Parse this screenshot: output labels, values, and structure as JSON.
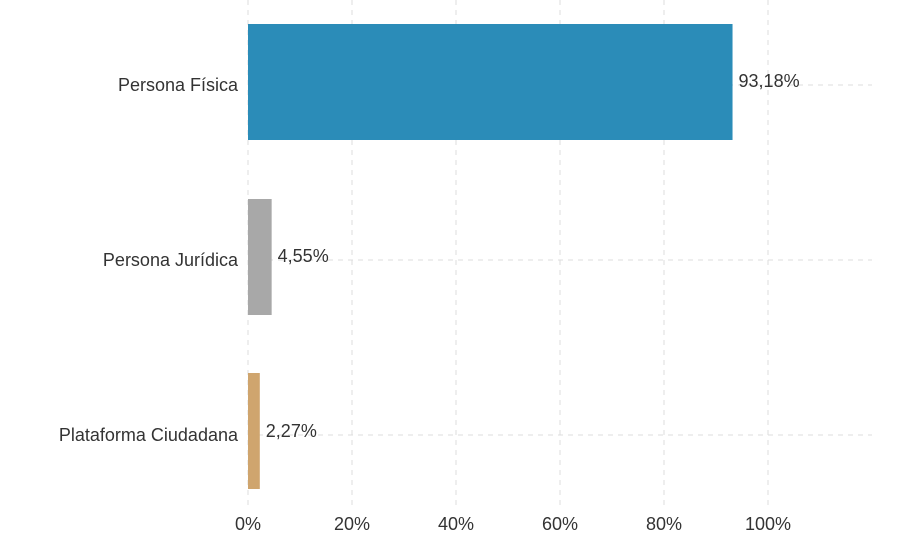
{
  "chart_data": {
    "type": "bar",
    "orientation": "horizontal",
    "categories": [
      "Persona Física",
      "Persona Jurídica",
      "Plataforma Ciudadana"
    ],
    "values": [
      93.18,
      4.55,
      2.27
    ],
    "value_labels": [
      "93,18%",
      "4,55%",
      "2,27%"
    ],
    "colors": [
      "#2b8cb8",
      "#a8a8a8",
      "#cfa56e"
    ],
    "xlim": [
      0,
      120
    ],
    "x_ticks": [
      0,
      20,
      40,
      60,
      80,
      100
    ],
    "x_tick_labels": [
      "0%",
      "20%",
      "40%",
      "60%",
      "80%",
      "100%"
    ],
    "grid": true,
    "grid_style": "dashed",
    "title": "",
    "xlabel": "",
    "ylabel": ""
  }
}
